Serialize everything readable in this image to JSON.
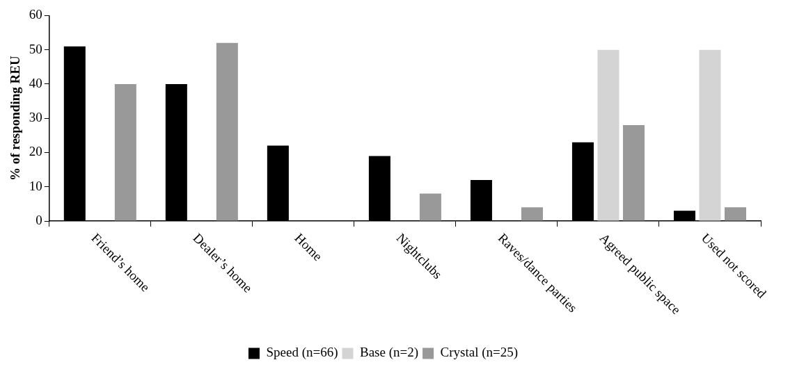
{
  "chart_data": {
    "type": "bar",
    "ylabel": "% of responding REU",
    "categories": [
      "Friend’s home",
      "Dealer’s home",
      "Home",
      "Nightclubs",
      "Raves/dance parties",
      "Agreed public space",
      "Used not scored"
    ],
    "series": [
      {
        "name": "Speed (n=66)",
        "color": "#000000",
        "values": [
          51,
          40,
          22,
          19,
          12,
          23,
          3
        ]
      },
      {
        "name": "Base (n=2)",
        "color": "#d4d4d4",
        "values": [
          0,
          0,
          0,
          0,
          0,
          50,
          50
        ]
      },
      {
        "name": "Crystal (n=25)",
        "color": "#999999",
        "values": [
          40,
          52,
          0,
          8,
          4,
          28,
          4
        ]
      }
    ],
    "ylim": [
      0,
      60
    ],
    "yticks": [
      0,
      10,
      20,
      30,
      40,
      50,
      60
    ],
    "grid": false,
    "legend": "bottom"
  }
}
